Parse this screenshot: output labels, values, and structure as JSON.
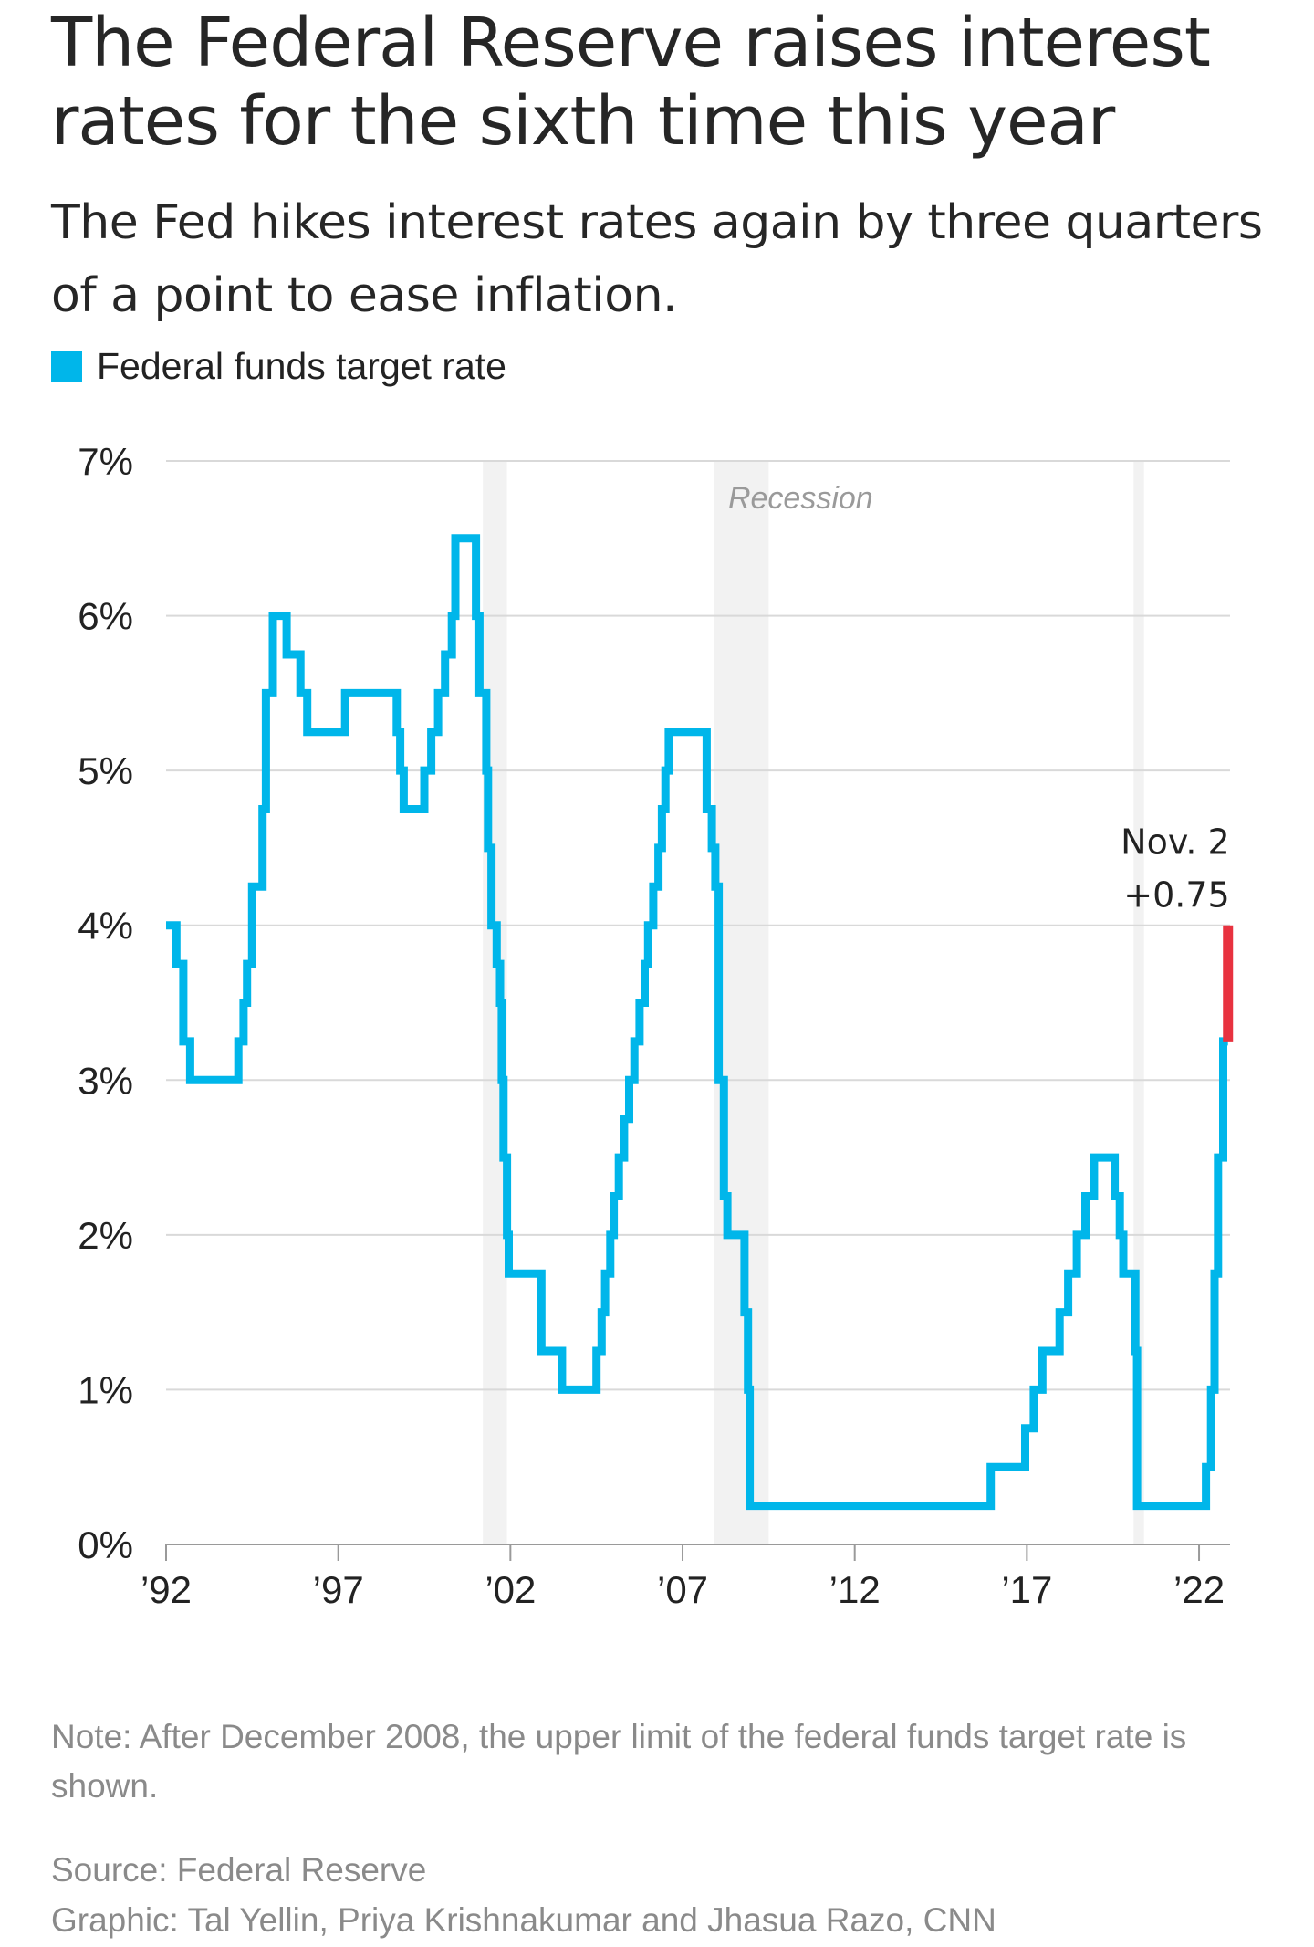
{
  "header": {
    "title": "The Federal Reserve raises interest rates for the sixth time this year",
    "subtitle": "The Fed hikes interest rates again by three quarters of a point to ease inflation."
  },
  "footer": {
    "note": "Note: After December 2008, the upper limit of the federal funds target rate is shown.",
    "source": "Source: Federal Reserve",
    "credit": "Graphic: Tal Yellin, Priya Krishnakumar and Jhasua Razo, CNN"
  },
  "chart_data": {
    "type": "line",
    "title": "The Federal Reserve raises interest rates for the sixth time this year",
    "subtitle": "The Fed hikes interest rates again by three quarters of a point to ease inflation.",
    "xlabel": "",
    "ylabel": "",
    "xlim": [
      1992,
      2022.9
    ],
    "ylim": [
      0,
      7
    ],
    "y_ticks": [
      0,
      1,
      2,
      3,
      4,
      5,
      6,
      7
    ],
    "y_tick_labels": [
      "0%",
      "1%",
      "2%",
      "3%",
      "4%",
      "5%",
      "6%",
      "7%"
    ],
    "x_ticks": [
      1992,
      1997,
      2002,
      2007,
      2012,
      2017,
      2022
    ],
    "x_tick_labels": [
      "’92",
      "’97",
      "’02",
      "’07",
      "’12",
      "’17",
      "’22"
    ],
    "grid": true,
    "legend_placement": "top-left",
    "colors": {
      "series": "#00b6ea",
      "latest_hike": "#e8323f",
      "recession": "#f2f2f2",
      "grid": "#d9d9d9"
    },
    "recessions": [
      {
        "start": 2001.2,
        "end": 2001.9
      },
      {
        "start": 2007.9,
        "end": 2009.5
      },
      {
        "start": 2020.1,
        "end": 2020.4
      }
    ],
    "recession_label": "Recession",
    "annotation": {
      "line1": "Nov. 2",
      "line2": "+0.75"
    },
    "latest_hike": {
      "x": 2022.84,
      "from": 3.25,
      "to": 4.0
    },
    "series": [
      {
        "name": "Federal funds target rate",
        "step_points": [
          [
            1992.0,
            4.0
          ],
          [
            1992.3,
            3.75
          ],
          [
            1992.5,
            3.25
          ],
          [
            1992.7,
            3.0
          ],
          [
            1994.1,
            3.25
          ],
          [
            1994.25,
            3.5
          ],
          [
            1994.35,
            3.75
          ],
          [
            1994.5,
            4.25
          ],
          [
            1994.8,
            4.75
          ],
          [
            1994.9,
            5.5
          ],
          [
            1995.1,
            6.0
          ],
          [
            1995.5,
            5.75
          ],
          [
            1995.9,
            5.5
          ],
          [
            1996.1,
            5.25
          ],
          [
            1997.2,
            5.5
          ],
          [
            1998.7,
            5.25
          ],
          [
            1998.8,
            5.0
          ],
          [
            1998.9,
            4.75
          ],
          [
            1999.5,
            5.0
          ],
          [
            1999.7,
            5.25
          ],
          [
            1999.9,
            5.5
          ],
          [
            2000.1,
            5.75
          ],
          [
            2000.3,
            6.0
          ],
          [
            2000.4,
            6.5
          ],
          [
            2001.0,
            6.0
          ],
          [
            2001.1,
            5.5
          ],
          [
            2001.3,
            5.0
          ],
          [
            2001.35,
            4.5
          ],
          [
            2001.45,
            4.0
          ],
          [
            2001.6,
            3.75
          ],
          [
            2001.7,
            3.5
          ],
          [
            2001.75,
            3.0
          ],
          [
            2001.8,
            2.5
          ],
          [
            2001.9,
            2.0
          ],
          [
            2001.95,
            1.75
          ],
          [
            2002.9,
            1.25
          ],
          [
            2003.5,
            1.0
          ],
          [
            2004.5,
            1.25
          ],
          [
            2004.65,
            1.5
          ],
          [
            2004.75,
            1.75
          ],
          [
            2004.9,
            2.0
          ],
          [
            2005.0,
            2.25
          ],
          [
            2005.15,
            2.5
          ],
          [
            2005.3,
            2.75
          ],
          [
            2005.45,
            3.0
          ],
          [
            2005.6,
            3.25
          ],
          [
            2005.75,
            3.5
          ],
          [
            2005.9,
            3.75
          ],
          [
            2006.0,
            4.0
          ],
          [
            2006.15,
            4.25
          ],
          [
            2006.3,
            4.5
          ],
          [
            2006.4,
            4.75
          ],
          [
            2006.5,
            5.0
          ],
          [
            2006.6,
            5.25
          ],
          [
            2007.7,
            4.75
          ],
          [
            2007.85,
            4.5
          ],
          [
            2007.95,
            4.25
          ],
          [
            2008.05,
            3.0
          ],
          [
            2008.2,
            2.25
          ],
          [
            2008.3,
            2.0
          ],
          [
            2008.8,
            1.5
          ],
          [
            2008.9,
            1.0
          ],
          [
            2008.95,
            0.25
          ],
          [
            2015.95,
            0.5
          ],
          [
            2016.95,
            0.75
          ],
          [
            2017.2,
            1.0
          ],
          [
            2017.45,
            1.25
          ],
          [
            2017.95,
            1.5
          ],
          [
            2018.2,
            1.75
          ],
          [
            2018.45,
            2.0
          ],
          [
            2018.7,
            2.25
          ],
          [
            2018.95,
            2.5
          ],
          [
            2019.55,
            2.25
          ],
          [
            2019.7,
            2.0
          ],
          [
            2019.8,
            1.75
          ],
          [
            2020.15,
            1.25
          ],
          [
            2020.2,
            0.25
          ],
          [
            2022.2,
            0.5
          ],
          [
            2022.35,
            1.0
          ],
          [
            2022.45,
            1.75
          ],
          [
            2022.55,
            2.5
          ],
          [
            2022.7,
            3.25
          ],
          [
            2022.84,
            3.25
          ]
        ]
      }
    ]
  }
}
